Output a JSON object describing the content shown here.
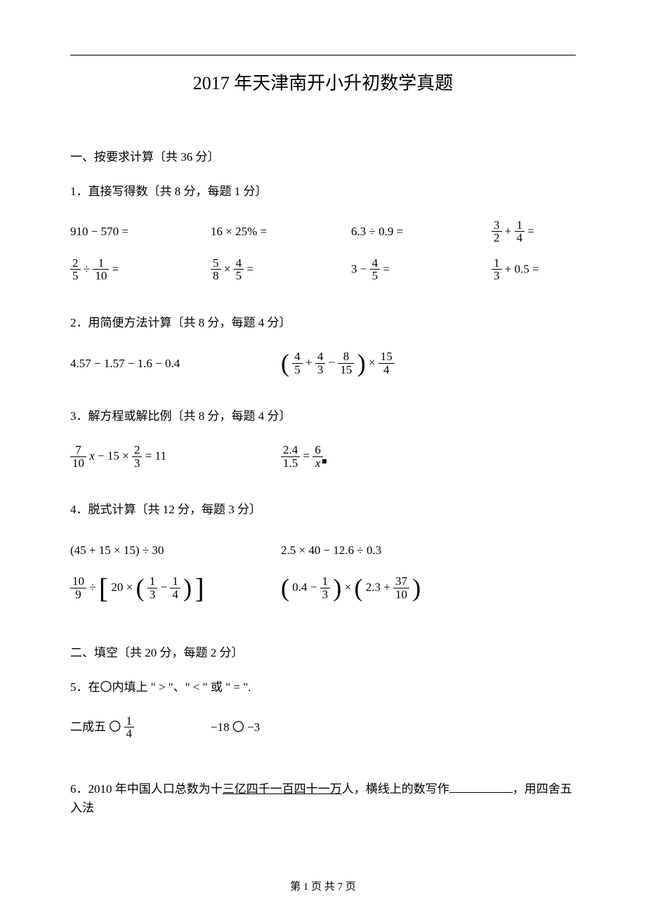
{
  "title": "2017 年天津南开小升初数学真题",
  "sectionA": {
    "heading": "一、按要求计算〔共 36 分〕",
    "q1": {
      "label": "1．直接写得数〔共 8 分，每题 1 分〕",
      "r1c1_a": "910",
      "r1c1_op": "−",
      "r1c1_b": "570",
      "eq": "=",
      "r1c2_a": "16",
      "r1c2_op": "×",
      "r1c2_b": "25%",
      "r1c3_a": "6.3",
      "r1c3_op": "÷",
      "r1c3_b": "0.9",
      "r1c4_f1n": "3",
      "r1c4_f1d": "2",
      "r1c4_op": "+",
      "r1c4_f2n": "1",
      "r1c4_f2d": "4",
      "r2c1_f1n": "2",
      "r2c1_f1d": "5",
      "r2c1_op": "÷",
      "r2c1_f2n": "1",
      "r2c1_f2d": "10",
      "r2c2_f1n": "5",
      "r2c2_f1d": "8",
      "r2c2_op": "×",
      "r2c2_f2n": "4",
      "r2c2_f2d": "5",
      "r2c3_a": "3",
      "r2c3_op": "−",
      "r2c3_f1n": "4",
      "r2c3_f1d": "5",
      "r2c4_f1n": "1",
      "r2c4_f1d": "3",
      "r2c4_op": "+",
      "r2c4_b": "0.5"
    },
    "q2": {
      "label": "2．用简便方法计算〔共 8 分，每题 4 分〕",
      "p1": "4.57 − 1.57 − 1.6 − 0.4",
      "p2_f1n": "4",
      "p2_f1d": "5",
      "p2_op1": "+",
      "p2_f2n": "4",
      "p2_f2d": "3",
      "p2_op2": "−",
      "p2_f3n": "8",
      "p2_f3d": "15",
      "p2_op3": "×",
      "p2_f4n": "15",
      "p2_f4d": "4"
    },
    "q3": {
      "label": "3．解方程或解比例〔共 8 分，每题 4 分〕",
      "p1_f1n": "7",
      "p1_f1d": "10",
      "p1_x": "x",
      "p1_op1": "−",
      "p1_a": "15",
      "p1_op2": "×",
      "p1_f2n": "2",
      "p1_f2d": "3",
      "p1_eq": "=",
      "p1_rhs": "11",
      "p2_f1n": "2.4",
      "p2_f1d": "1.5",
      "p2_eq": "=",
      "p2_f2n": "6",
      "p2_f2d": "x"
    },
    "q4": {
      "label": "4．脱式计算〔共 12 分，每题 3 分〕",
      "r1p1": "(45 + 15 × 15) ÷ 30",
      "r1p2": "2.5 × 40 − 12.6 ÷ 0.3",
      "r2p1_f1n": "10",
      "r2p1_f1d": "9",
      "r2p1_op1": "÷",
      "r2p1_a": "20",
      "r2p1_op2": "×",
      "r2p1_f2n": "1",
      "r2p1_f2d": "3",
      "r2p1_op3": "−",
      "r2p1_f3n": "1",
      "r2p1_f3d": "4",
      "r2p2_a": "0.4",
      "r2p2_op1": "−",
      "r2p2_f1n": "1",
      "r2p2_f1d": "3",
      "r2p2_op2": "×",
      "r2p2_b": "2.3",
      "r2p2_op3": "+",
      "r2p2_f2n": "37",
      "r2p2_f2d": "10"
    }
  },
  "sectionB": {
    "heading": "二、填空〔共 20 分，每题 2 分〕",
    "q5": {
      "label": "5．在〇内填上 \" > \"、\" < \" 或 \" = \".",
      "p1_a": "二成五",
      "p1_circ": "〇",
      "p1_f1n": "1",
      "p1_f1d": "4",
      "p2_a": "−18",
      "p2_circ": "〇",
      "p2_b": "−3"
    },
    "q6": {
      "pre": "6．2010 年中国人口总数为十",
      "ul": "三亿四千一百四十一万",
      "mid": "人，横线上的数写作",
      "post": "，用四舍五入法"
    }
  },
  "footer": {
    "pre": "第 ",
    "pg": "1",
    "mid": " 页 共 ",
    "total": "7",
    "post": " 页"
  },
  "colors": {
    "text": "#000000",
    "bg": "#ffffff"
  }
}
